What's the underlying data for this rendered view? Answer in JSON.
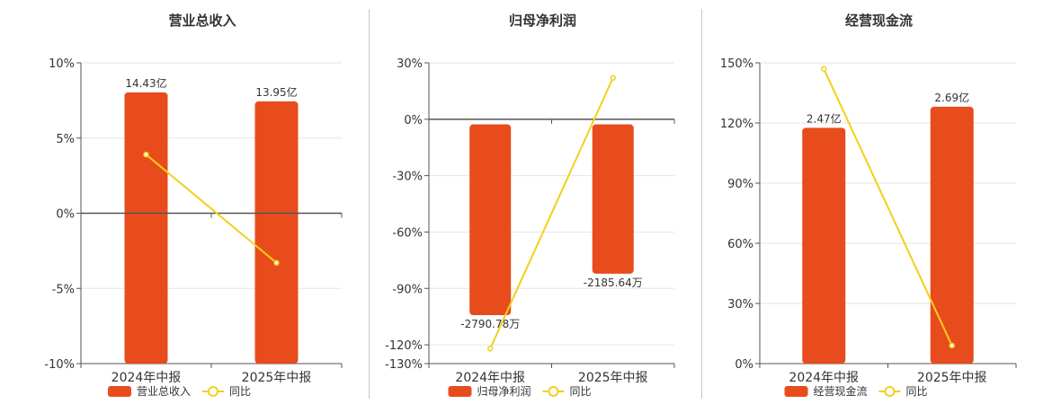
{
  "colors": {
    "bar": "#e84c1c",
    "line": "#f2d01a",
    "grid": "#e6e6e6",
    "axis": "#555555",
    "text": "#333333"
  },
  "chart_data": [
    {
      "type": "bar",
      "title": "营业总收入",
      "categories": [
        "2024年中报",
        "2025年中报"
      ],
      "bar_axis": {
        "ylim": [
          0,
          16
        ]
      },
      "line_axis": {
        "ylim": [
          -10,
          10
        ],
        "ticks": [
          10,
          5,
          0,
          -5,
          -10
        ],
        "tick_labels": [
          "10%",
          "5%",
          "0%",
          "-5%",
          "-10%"
        ]
      },
      "series": [
        {
          "name": "营业总收入",
          "kind": "bar",
          "values": [
            14.43,
            13.95
          ],
          "labels": [
            "14.43亿",
            "13.95亿"
          ]
        },
        {
          "name": "同比",
          "kind": "line",
          "values": [
            3.9,
            -3.3
          ]
        }
      ],
      "legend_position": "bottom"
    },
    {
      "type": "bar",
      "title": "归母净利润",
      "categories": [
        "2024年中报",
        "2025年中报"
      ],
      "bar_axis": {
        "ylim": [
          -3500,
          900
        ]
      },
      "line_axis": {
        "ylim": [
          -130,
          30
        ],
        "ticks": [
          30,
          0,
          -30,
          -60,
          -90,
          -120,
          -130
        ],
        "tick_labels": [
          "30%",
          "0%",
          "-30%",
          "-60%",
          "-90%",
          "-120%",
          "-130%"
        ]
      },
      "series": [
        {
          "name": "归母净利润",
          "kind": "bar",
          "values": [
            -2790.78,
            -2185.64
          ],
          "labels": [
            "-2790.78万",
            "-2185.64万"
          ]
        },
        {
          "name": "同比",
          "kind": "line",
          "values": [
            -122,
            22
          ]
        }
      ],
      "legend_position": "bottom"
    },
    {
      "type": "bar",
      "title": "经营现金流",
      "categories": [
        "2024年中报",
        "2025年中报"
      ],
      "bar_axis": {
        "ylim": [
          0,
          3.15
        ]
      },
      "line_axis": {
        "ylim": [
          0,
          150
        ],
        "ticks": [
          150,
          120,
          90,
          60,
          30,
          0
        ],
        "tick_labels": [
          "150%",
          "120%",
          "90%",
          "60%",
          "30%",
          "0%"
        ]
      },
      "series": [
        {
          "name": "经营现金流",
          "kind": "bar",
          "values": [
            2.47,
            2.69
          ],
          "labels": [
            "2.47亿",
            "2.69亿"
          ]
        },
        {
          "name": "同比",
          "kind": "line",
          "values": [
            147,
            9
          ]
        }
      ],
      "legend_position": "bottom"
    }
  ]
}
